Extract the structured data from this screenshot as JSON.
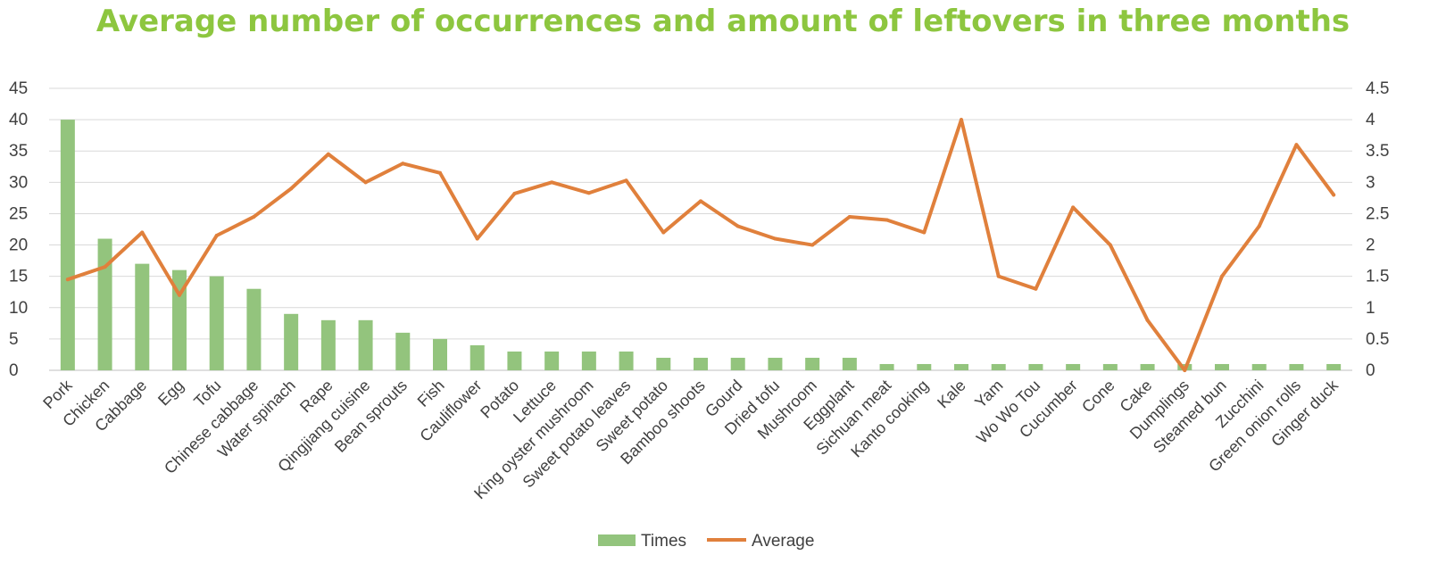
{
  "colors": {
    "bar": "#93c47d",
    "line": "#e0803c",
    "title": "#8dc63f",
    "grid": "#d9d9d9"
  },
  "chart_data": {
    "type": "bar",
    "title": "Average number of occurrences and amount of leftovers in three months",
    "categories": [
      "Pork",
      "Chicken",
      "Cabbage",
      "Egg",
      "Tofu",
      "Chinese cabbage",
      "Water spinach",
      "Rape",
      "Qingjiang cuisine",
      "Bean sprouts",
      "Fish",
      "Cauliflower",
      "Potato",
      "Lettuce",
      "King oyster mushroom",
      "Sweet potato leaves",
      "Sweet potato",
      "Bamboo shoots",
      "Gourd",
      "Dried tofu",
      "Mushroom",
      "Eggplant",
      "Sichuan meat",
      "Kanto cooking",
      "Kale",
      "Yam",
      "Wo Wo Tou",
      "Cucumber",
      "Cone",
      "Cake",
      "Dumplings",
      "Steamed bun",
      "Zucchini",
      "Green onion rolls",
      "Ginger duck"
    ],
    "series": [
      {
        "name": "Times",
        "type": "bar",
        "axis": "left",
        "values": [
          40,
          21,
          17,
          16,
          15,
          13,
          9,
          8,
          8,
          6,
          5,
          4,
          3,
          3,
          3,
          3,
          2,
          2,
          2,
          2,
          2,
          2,
          1,
          1,
          1,
          1,
          1,
          1,
          1,
          1,
          1,
          1,
          1,
          1,
          1
        ]
      },
      {
        "name": "Average",
        "type": "line",
        "axis": "right",
        "values": [
          1.45,
          1.65,
          2.2,
          1.2,
          2.15,
          2.45,
          2.9,
          3.45,
          3.0,
          3.3,
          3.15,
          2.1,
          2.82,
          3.0,
          2.83,
          3.03,
          2.2,
          2.7,
          2.3,
          2.1,
          2.0,
          2.45,
          2.4,
          2.2,
          4.0,
          1.5,
          1.3,
          2.6,
          2.0,
          0.8,
          0.0,
          1.5,
          2.3,
          3.6,
          2.8
        ]
      }
    ],
    "y_left": {
      "ylim": [
        0,
        45
      ],
      "ticks": [
        "0",
        "5",
        "10",
        "15",
        "20",
        "25",
        "30",
        "35",
        "40",
        "45"
      ]
    },
    "y_right": {
      "ylim": [
        0,
        4.5
      ],
      "ticks": [
        "0",
        "0.5",
        "1",
        "1.5",
        "2",
        "2.5",
        "3",
        "3.5",
        "4",
        "4.5"
      ]
    },
    "grid": true,
    "legend": "bottom"
  }
}
